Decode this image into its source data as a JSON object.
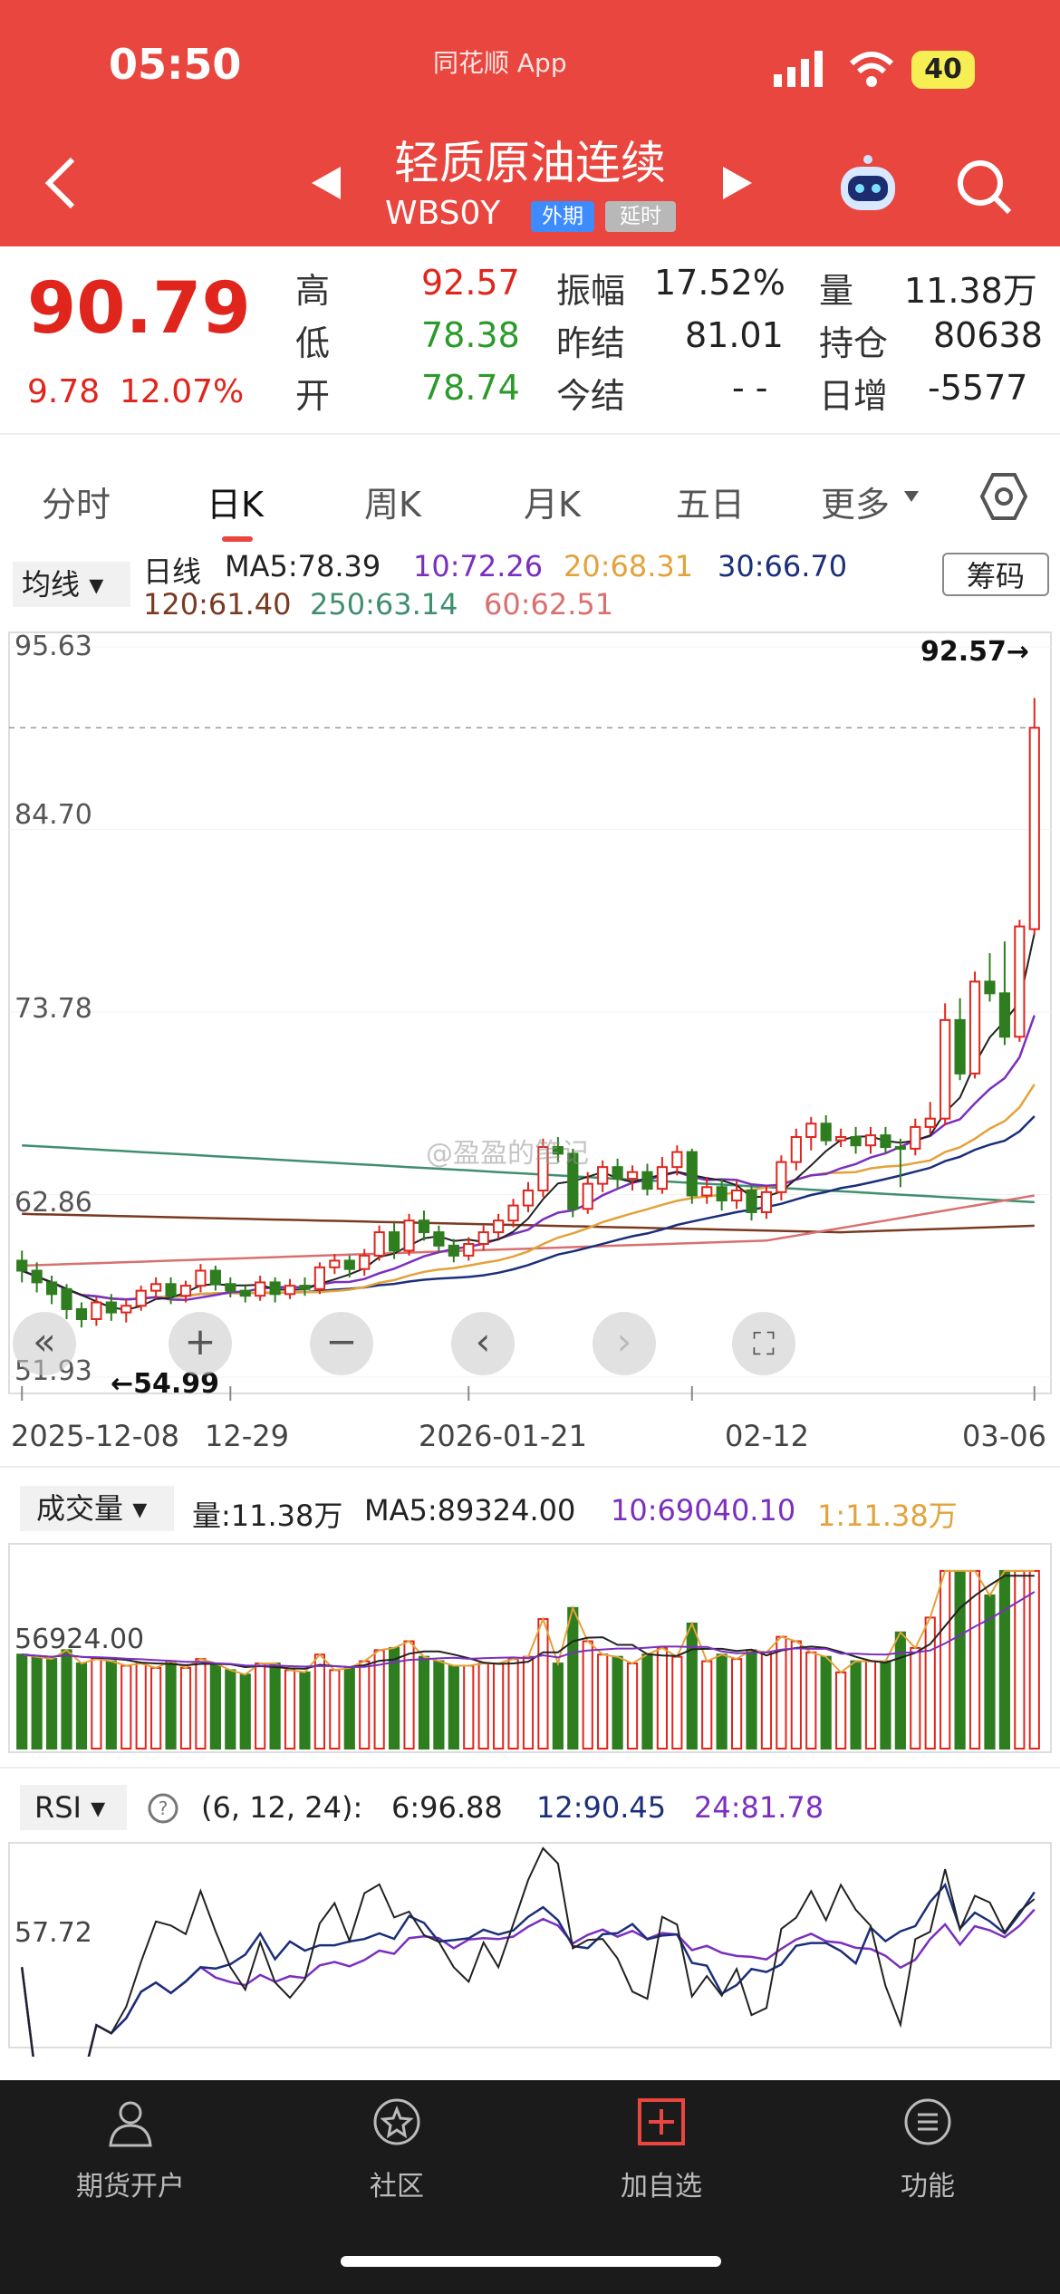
{
  "status": {
    "time": "05:50",
    "app": "同花顺 App",
    "battery": "40"
  },
  "header": {
    "title": "轻质原油连续",
    "code": "WBS0Y",
    "tag_foreign": "外期",
    "tag_delay": "延时"
  },
  "quote": {
    "price": "90.79",
    "change": "9.78",
    "change_pct": "12.07%",
    "high_label": "高",
    "high": "92.57",
    "low_label": "低",
    "low": "78.38",
    "open_label": "开",
    "open": "78.74",
    "amp_label": "振幅",
    "amp": "17.52%",
    "prev_settle_label": "昨结",
    "prev_settle": "81.01",
    "today_settle_label": "今结",
    "today_settle": "- -",
    "vol_label": "量",
    "vol": "11.38万",
    "oi_label": "持仓",
    "oi": "80638",
    "oi_inc_label": "日增",
    "oi_inc": "-5577"
  },
  "tabs": [
    "分时",
    "日K",
    "周K",
    "月K",
    "五日",
    "更多"
  ],
  "ma": {
    "btn": "均线",
    "kind": "日线",
    "ma5": "MA5:78.39",
    "ma10": "10:72.26",
    "ma20": "20:68.31",
    "ma30": "30:66.70",
    "ma120": "120:61.40",
    "ma250": "250:63.14",
    "ma60": "60:62.51",
    "chip": "筹码"
  },
  "colors": {
    "up": "#e0251c",
    "down": "#2e7d1f",
    "ma5": "#222222",
    "ma10": "#7b2fbf",
    "ma20": "#e3a23a",
    "ma30": "#1b2f7a",
    "ma60": "#d9706f",
    "ma120": "#7a3a22",
    "ma250": "#3f8f6f"
  },
  "kline_axis": {
    "y_ticks": [
      "95.63",
      "84.70",
      "73.78",
      "62.86",
      "51.93"
    ],
    "high_mark": "92.57→",
    "low_mark": "←54.99",
    "dates": [
      "2025-12-08",
      "12-29",
      "2026-01-21",
      "02-12",
      "03-06"
    ]
  },
  "watermark": "@盈盈的笔记",
  "volume": {
    "btn": "成交量",
    "amount": "量:11.38万",
    "ma5": "MA5:89324.00",
    "ma10": "10:69040.10",
    "ma1": "1:11.38万",
    "tick": "56924.00"
  },
  "rsi": {
    "btn": "RSI",
    "params": "(6, 12, 24):",
    "r6": "6:96.88",
    "r12": "12:90.45",
    "r24": "24:81.78",
    "tick": "57.72"
  },
  "chart_data": {
    "type": "candlestick",
    "title": "轻质原油连续 日K",
    "categories": [
      "2025-12-08",
      "12-29",
      "2026-01-21",
      "02-12",
      "03-06"
    ],
    "ylim": [
      51.93,
      95.63
    ],
    "y_ticks": [
      51.93,
      62.86,
      73.78,
      84.7,
      95.63
    ],
    "candles": [
      [
        58.9,
        58.3,
        59.5,
        57.6
      ],
      [
        58.3,
        57.6,
        58.8,
        57.0
      ],
      [
        57.6,
        56.9,
        58.0,
        56.3
      ],
      [
        57.2,
        56.0,
        57.5,
        55.4
      ],
      [
        56.0,
        55.4,
        56.4,
        54.9
      ],
      [
        55.4,
        56.4,
        56.7,
        55.0
      ],
      [
        56.4,
        55.8,
        56.9,
        55.3
      ],
      [
        55.8,
        56.2,
        56.6,
        55.2
      ],
      [
        56.2,
        57.1,
        57.4,
        55.9
      ],
      [
        57.1,
        57.5,
        57.9,
        56.6
      ],
      [
        57.5,
        56.8,
        57.9,
        56.3
      ],
      [
        56.8,
        57.4,
        57.7,
        56.4
      ],
      [
        57.4,
        58.3,
        58.7,
        57.0
      ],
      [
        58.3,
        57.5,
        58.6,
        57.1
      ],
      [
        57.5,
        57.1,
        57.9,
        56.7
      ],
      [
        57.1,
        56.8,
        57.4,
        56.4
      ],
      [
        56.8,
        57.6,
        58.0,
        56.5
      ],
      [
        57.6,
        56.9,
        57.9,
        56.4
      ],
      [
        56.9,
        57.4,
        57.8,
        56.6
      ],
      [
        57.4,
        57.2,
        57.9,
        56.8
      ],
      [
        57.2,
        58.5,
        58.8,
        56.9
      ],
      [
        58.5,
        58.9,
        59.3,
        58.1
      ],
      [
        58.9,
        58.4,
        59.2,
        57.9
      ],
      [
        58.4,
        59.2,
        59.6,
        58.0
      ],
      [
        59.2,
        60.6,
        61.0,
        58.9
      ],
      [
        60.6,
        59.5,
        61.2,
        59.0
      ],
      [
        59.5,
        61.3,
        61.7,
        59.2
      ],
      [
        61.3,
        60.6,
        61.9,
        60.1
      ],
      [
        60.6,
        59.8,
        61.0,
        59.4
      ],
      [
        59.8,
        59.2,
        60.2,
        58.8
      ],
      [
        59.2,
        59.9,
        60.3,
        58.9
      ],
      [
        59.9,
        60.6,
        61.0,
        59.5
      ],
      [
        60.6,
        61.3,
        61.7,
        60.2
      ],
      [
        61.3,
        62.2,
        62.6,
        60.9
      ],
      [
        62.2,
        63.1,
        63.6,
        61.8
      ],
      [
        63.1,
        65.7,
        66.2,
        62.7
      ],
      [
        65.7,
        65.3,
        66.3,
        64.8
      ],
      [
        65.3,
        62.0,
        65.6,
        61.5
      ],
      [
        62.0,
        63.5,
        64.2,
        61.7
      ],
      [
        63.5,
        64.5,
        64.9,
        63.0
      ],
      [
        64.5,
        63.8,
        65.0,
        63.2
      ],
      [
        63.8,
        64.2,
        64.6,
        63.1
      ],
      [
        64.2,
        63.2,
        64.7,
        62.8
      ],
      [
        63.2,
        64.5,
        65.1,
        62.9
      ],
      [
        64.5,
        65.4,
        65.8,
        64.0
      ],
      [
        65.4,
        62.8,
        65.6,
        62.3
      ],
      [
        62.8,
        63.3,
        63.9,
        62.3
      ],
      [
        63.3,
        62.5,
        63.8,
        61.9
      ],
      [
        62.5,
        63.1,
        63.7,
        62.0
      ],
      [
        63.1,
        61.8,
        63.4,
        61.3
      ],
      [
        61.8,
        63.0,
        63.4,
        61.4
      ],
      [
        63.0,
        64.8,
        65.2,
        62.5
      ],
      [
        64.8,
        66.3,
        66.8,
        64.3
      ],
      [
        66.3,
        67.1,
        67.5,
        65.5
      ],
      [
        67.1,
        66.1,
        67.6,
        65.8
      ],
      [
        66.1,
        66.3,
        66.8,
        65.7
      ],
      [
        66.3,
        65.8,
        66.9,
        65.3
      ],
      [
        65.8,
        66.4,
        66.9,
        65.3
      ],
      [
        66.4,
        65.7,
        66.9,
        65.3
      ],
      [
        65.7,
        65.6,
        66.2,
        63.3
      ],
      [
        65.6,
        66.9,
        67.4,
        65.2
      ],
      [
        66.9,
        67.4,
        68.4,
        66.5
      ],
      [
        67.4,
        73.3,
        74.3,
        67.0
      ],
      [
        73.3,
        70.1,
        74.6,
        69.7
      ],
      [
        70.1,
        75.6,
        76.2,
        69.8
      ],
      [
        75.6,
        74.9,
        77.3,
        74.4
      ],
      [
        74.9,
        72.3,
        78.0,
        71.8
      ],
      [
        72.3,
        78.9,
        79.3,
        72.0
      ],
      [
        78.74,
        90.79,
        92.57,
        78.38
      ]
    ],
    "volume_ticks": [
      "56924.00"
    ],
    "rsi_ticks": [
      "57.72"
    ],
    "rsi_latest": {
      "rsi6": 96.88,
      "rsi12": 90.45,
      "rsi24": 81.78
    }
  },
  "bottom_nav": [
    "期货开户",
    "社区",
    "加自选",
    "功能"
  ]
}
